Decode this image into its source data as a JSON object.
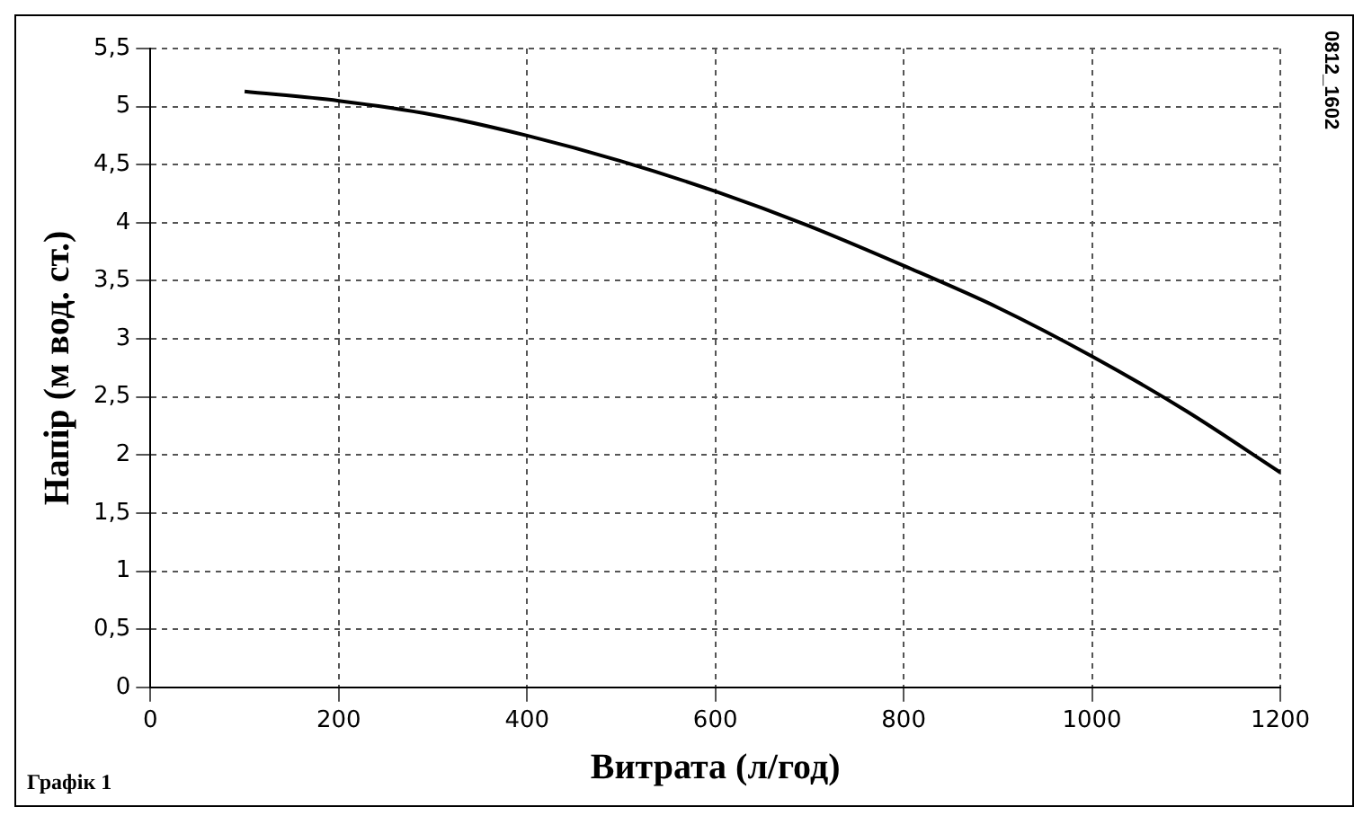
{
  "chart_data": {
    "type": "line",
    "xlabel": "Витрата (л/год)",
    "ylabel": "Напір (м вод. ст.)",
    "annotations": [
      "Графік 1",
      "0812_1602"
    ],
    "x": [
      100,
      200,
      300,
      400,
      500,
      600,
      700,
      800,
      900,
      1000,
      1100,
      1200
    ],
    "series": [
      {
        "color": "#000000",
        "values": [
          5.13,
          5.05,
          4.93,
          4.75,
          4.53,
          4.27,
          3.97,
          3.63,
          3.27,
          2.85,
          2.38,
          1.85
        ]
      }
    ],
    "xlim": [
      0,
      1200
    ],
    "xticks": [
      0,
      200,
      400,
      600,
      800,
      1000,
      1200
    ],
    "ylim": [
      0,
      5.5
    ],
    "yticks": [
      0,
      {
        "value": 0.5,
        "label": "0,5"
      },
      1,
      {
        "value": 1.5,
        "label": "1,5"
      },
      2,
      {
        "value": 2.5,
        "label": "2,5"
      },
      3,
      {
        "value": 3.5,
        "label": "3,5"
      },
      4,
      {
        "value": 4.5,
        "label": "4,5"
      },
      5,
      {
        "value": 5.5,
        "label": "5,5"
      }
    ],
    "grid": true,
    "legend": false,
    "marker": "none",
    "line_style": "solid"
  }
}
